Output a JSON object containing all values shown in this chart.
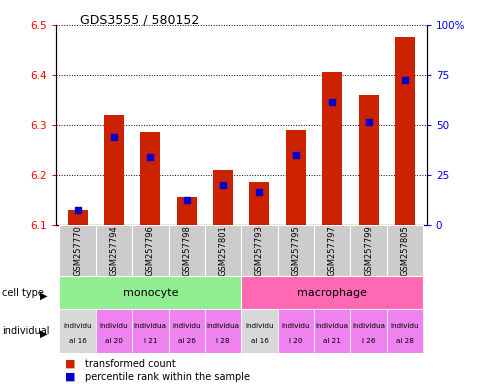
{
  "title": "GDS3555 / 580152",
  "samples": [
    "GSM257770",
    "GSM257794",
    "GSM257796",
    "GSM257798",
    "GSM257801",
    "GSM257793",
    "GSM257795",
    "GSM257797",
    "GSM257799",
    "GSM257805"
  ],
  "red_values": [
    6.13,
    6.32,
    6.285,
    6.155,
    6.21,
    6.185,
    6.29,
    6.405,
    6.36,
    6.475
  ],
  "blue_values": [
    6.13,
    6.275,
    6.235,
    6.15,
    6.18,
    6.165,
    6.24,
    6.345,
    6.305,
    6.39
  ],
  "ymin": 6.1,
  "ymax": 6.5,
  "yticks_left": [
    6.1,
    6.2,
    6.3,
    6.4,
    6.5
  ],
  "yticks_right": [
    0,
    25,
    50,
    75,
    100
  ],
  "ytick_right_labels": [
    "0",
    "25",
    "50",
    "75",
    "100%"
  ],
  "bar_color": "#cc2200",
  "blue_color": "#0000cc",
  "bg_gray": "#cccccc",
  "cell_type_green": "#90ee90",
  "cell_type_pink": "#ff69b4",
  "ind_gray": "#d8d8d8",
  "ind_pink": "#ee82ee",
  "ind_labels_line1": [
    "individu",
    "individu",
    "individua",
    "individu",
    "individua",
    "individu",
    "individu",
    "individua",
    "individua",
    "individu"
  ],
  "ind_labels_line2": [
    "al 16",
    "al 20",
    "l 21",
    "al 26",
    "l 28",
    "al 16",
    "l 20",
    "al 21",
    "l 26",
    "al 28"
  ],
  "ind_colors": [
    "#d8d8d8",
    "#ee82ee",
    "#ee82ee",
    "#ee82ee",
    "#ee82ee",
    "#d8d8d8",
    "#ee82ee",
    "#ee82ee",
    "#ee82ee",
    "#ee82ee"
  ],
  "legend_red": "transformed count",
  "legend_blue": "percentile rank within the sample"
}
